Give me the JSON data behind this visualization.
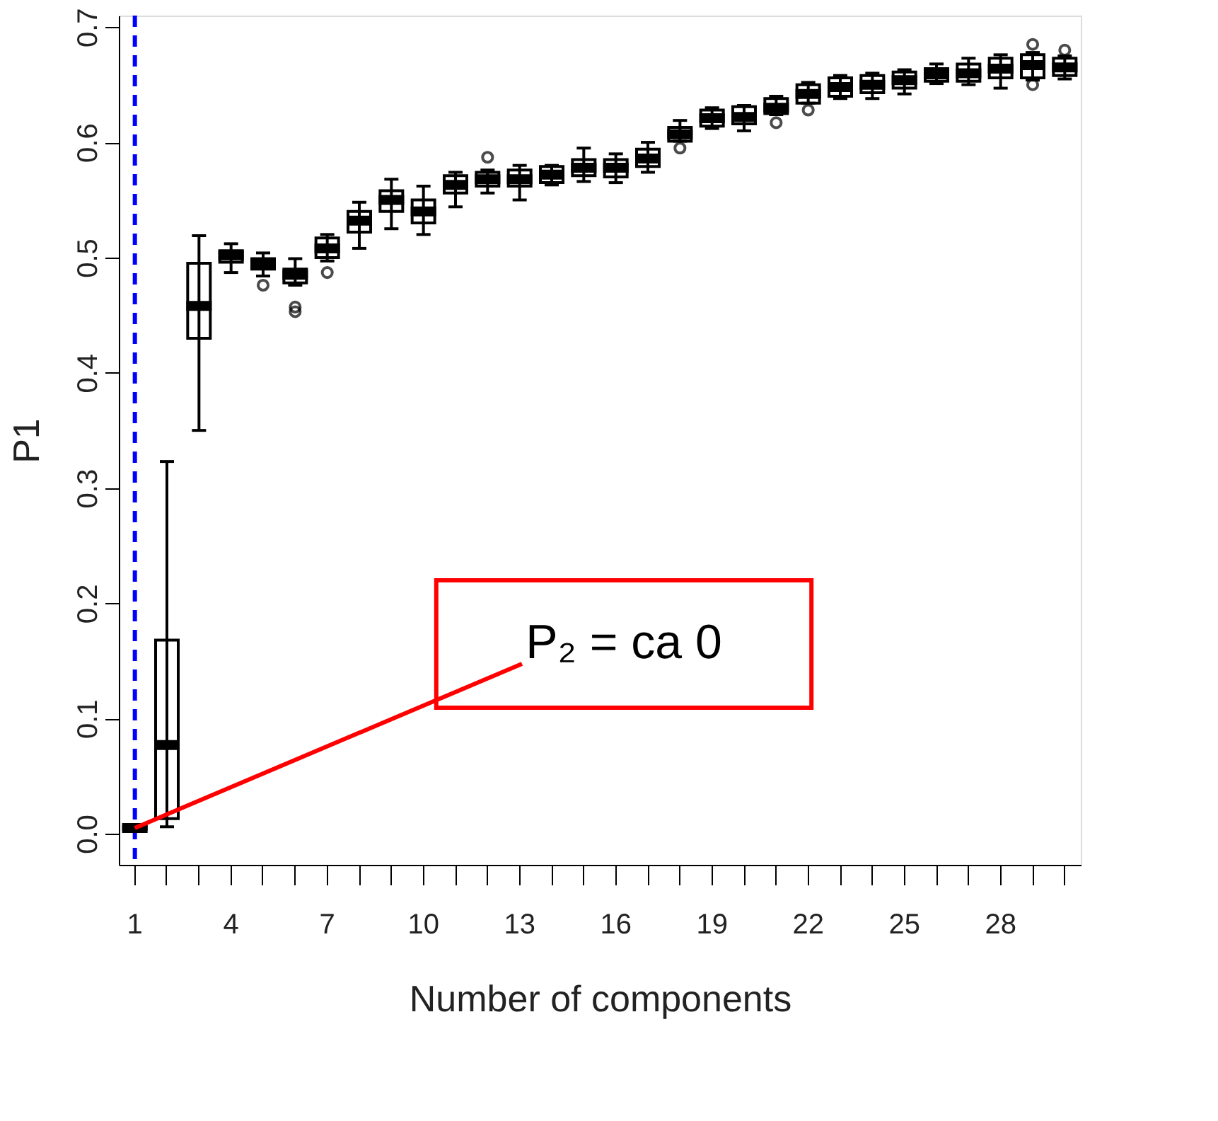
{
  "chart_data": {
    "type": "box",
    "xlabel": "Number of components",
    "ylabel": "P1",
    "categories": [
      "1",
      null,
      null,
      "4",
      null,
      null,
      "7",
      null,
      null,
      "10",
      null,
      null,
      "13",
      null,
      null,
      "16",
      null,
      null,
      "19",
      null,
      null,
      "22",
      null,
      null,
      "25",
      null,
      null,
      "28",
      null,
      null
    ],
    "boxes": [
      {
        "low": 0.003,
        "q1": 0.004,
        "median": 0.005,
        "q3": 0.006,
        "high": 0.007
      },
      {
        "low": 0.006,
        "q1": 0.013,
        "median": 0.077,
        "q3": 0.168,
        "high": 0.323
      },
      {
        "low": 0.35,
        "q1": 0.43,
        "median": 0.458,
        "q3": 0.495,
        "high": 0.519
      },
      {
        "low": 0.487,
        "q1": 0.496,
        "median": 0.502,
        "q3": 0.506,
        "high": 0.512
      },
      {
        "low": 0.484,
        "q1": 0.49,
        "median": 0.494,
        "q3": 0.499,
        "high": 0.504,
        "outliers": [
          0.476
        ]
      },
      {
        "low": 0.476,
        "q1": 0.478,
        "median": 0.485,
        "q3": 0.49,
        "high": 0.499,
        "outliers": [
          0.457,
          0.453
        ]
      },
      {
        "low": 0.497,
        "q1": 0.5,
        "median": 0.508,
        "q3": 0.517,
        "high": 0.52,
        "outliers": [
          0.487
        ]
      },
      {
        "low": 0.508,
        "q1": 0.522,
        "median": 0.532,
        "q3": 0.54,
        "high": 0.548
      },
      {
        "low": 0.525,
        "q1": 0.54,
        "median": 0.55,
        "q3": 0.558,
        "high": 0.568
      },
      {
        "low": 0.52,
        "q1": 0.53,
        "median": 0.54,
        "q3": 0.55,
        "high": 0.562
      },
      {
        "low": 0.544,
        "q1": 0.556,
        "median": 0.563,
        "q3": 0.571,
        "high": 0.574
      },
      {
        "low": 0.556,
        "q1": 0.562,
        "median": 0.568,
        "q3": 0.574,
        "high": 0.576,
        "outliers": [
          0.587
        ]
      },
      {
        "low": 0.55,
        "q1": 0.562,
        "median": 0.568,
        "q3": 0.576,
        "high": 0.58
      },
      {
        "low": 0.563,
        "q1": 0.565,
        "median": 0.572,
        "q3": 0.579,
        "high": 0.58
      },
      {
        "low": 0.566,
        "q1": 0.571,
        "median": 0.578,
        "q3": 0.585,
        "high": 0.595
      },
      {
        "low": 0.565,
        "q1": 0.57,
        "median": 0.578,
        "q3": 0.585,
        "high": 0.59
      },
      {
        "low": 0.574,
        "q1": 0.579,
        "median": 0.586,
        "q3": 0.594,
        "high": 0.6
      },
      {
        "low": 0.601,
        "q1": 0.601,
        "median": 0.607,
        "q3": 0.613,
        "high": 0.619,
        "outliers": [
          0.595
        ]
      },
      {
        "low": 0.612,
        "q1": 0.614,
        "median": 0.621,
        "q3": 0.628,
        "high": 0.63
      },
      {
        "low": 0.61,
        "q1": 0.616,
        "median": 0.622,
        "q3": 0.631,
        "high": 0.632
      },
      {
        "low": 0.624,
        "q1": 0.625,
        "median": 0.63,
        "q3": 0.638,
        "high": 0.64,
        "outliers": [
          0.617
        ]
      },
      {
        "low": 0.634,
        "q1": 0.634,
        "median": 0.642,
        "q3": 0.65,
        "high": 0.652,
        "outliers": [
          0.628
        ]
      },
      {
        "low": 0.638,
        "q1": 0.64,
        "median": 0.648,
        "q3": 0.656,
        "high": 0.658
      },
      {
        "low": 0.638,
        "q1": 0.643,
        "median": 0.65,
        "q3": 0.658,
        "high": 0.66
      },
      {
        "low": 0.642,
        "q1": 0.647,
        "median": 0.654,
        "q3": 0.661,
        "high": 0.663
      },
      {
        "low": 0.651,
        "q1": 0.653,
        "median": 0.659,
        "q3": 0.664,
        "high": 0.668
      },
      {
        "low": 0.65,
        "q1": 0.653,
        "median": 0.66,
        "q3": 0.668,
        "high": 0.673
      },
      {
        "low": 0.647,
        "q1": 0.656,
        "median": 0.664,
        "q3": 0.673,
        "high": 0.676
      },
      {
        "low": 0.654,
        "q1": 0.656,
        "median": 0.667,
        "q3": 0.676,
        "high": 0.678,
        "outliers": [
          0.685,
          0.65
        ]
      },
      {
        "low": 0.655,
        "q1": 0.658,
        "median": 0.665,
        "q3": 0.673,
        "high": 0.675,
        "outliers": [
          0.68
        ]
      }
    ],
    "ylim": [
      -0.027,
      0.71
    ],
    "yticks": [
      {
        "value": 0,
        "label": "0.0"
      },
      {
        "value": 0.1,
        "label": "0.1"
      },
      {
        "value": 0.2,
        "label": "0.2"
      },
      {
        "value": 0.3,
        "label": "0.3"
      },
      {
        "value": 0.4,
        "label": "0.4"
      },
      {
        "value": 0.5,
        "label": "0.5"
      },
      {
        "value": 0.6,
        "label": "0.6"
      },
      {
        "value": 0.7,
        "label": "0.7"
      }
    ],
    "ref_lines": [
      {
        "axis": "x",
        "value": "1",
        "color": "#0000ff",
        "line_style": "dashed"
      }
    ],
    "annotations": [
      {
        "text": "P₂ = ca 0",
        "x": "1",
        "y": 0.005
      }
    ],
    "grid": false
  }
}
